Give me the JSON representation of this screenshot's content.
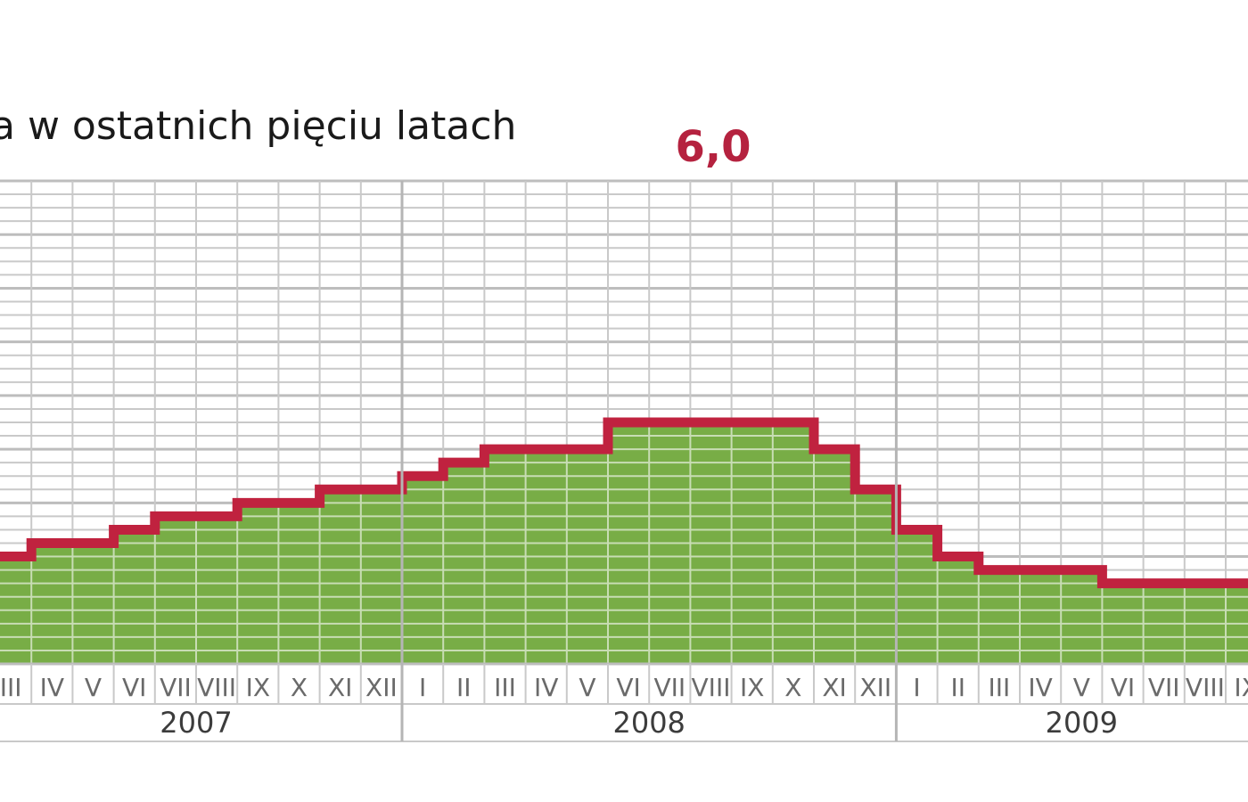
{
  "chart_data": {
    "type": "area",
    "title": "a w ostatnich pięciu latach",
    "xlabel": "",
    "ylabel": "",
    "grid": true,
    "step": true,
    "ylim": [
      2.4,
      6.0
    ],
    "months": [
      "III",
      "IV",
      "V",
      "VI",
      "VII",
      "VIII",
      "IX",
      "X",
      "XI",
      "XII",
      "I",
      "II",
      "III",
      "IV",
      "V",
      "VI",
      "VII",
      "VIII",
      "IX",
      "X",
      "XI",
      "XII",
      "I",
      "II",
      "III",
      "IV",
      "V",
      "VI",
      "VII",
      "VIII",
      "IX"
    ],
    "years": [
      {
        "label": "2007",
        "from": 0,
        "to": 10
      },
      {
        "label": "2008",
        "from": 10,
        "to": 22
      },
      {
        "label": "2009",
        "from": 22,
        "to": 31
      }
    ],
    "values": [
      3.2,
      3.3,
      3.3,
      3.4,
      3.5,
      3.5,
      3.6,
      3.6,
      3.7,
      3.7,
      3.8,
      3.9,
      4.0,
      4.0,
      4.0,
      4.2,
      4.2,
      4.2,
      4.2,
      4.2,
      4.0,
      3.7,
      3.4,
      3.2,
      3.1,
      3.1,
      3.1,
      3.0,
      3.0,
      3.0,
      3.0
    ],
    "annotations": [
      {
        "text": "6,0",
        "index": 17
      }
    ],
    "colors": {
      "fill": "#78ad46",
      "line": "#c0223f",
      "grid": "#c9c9c9",
      "axis": "#bdbdbd",
      "text": "#6a6a6a"
    }
  }
}
